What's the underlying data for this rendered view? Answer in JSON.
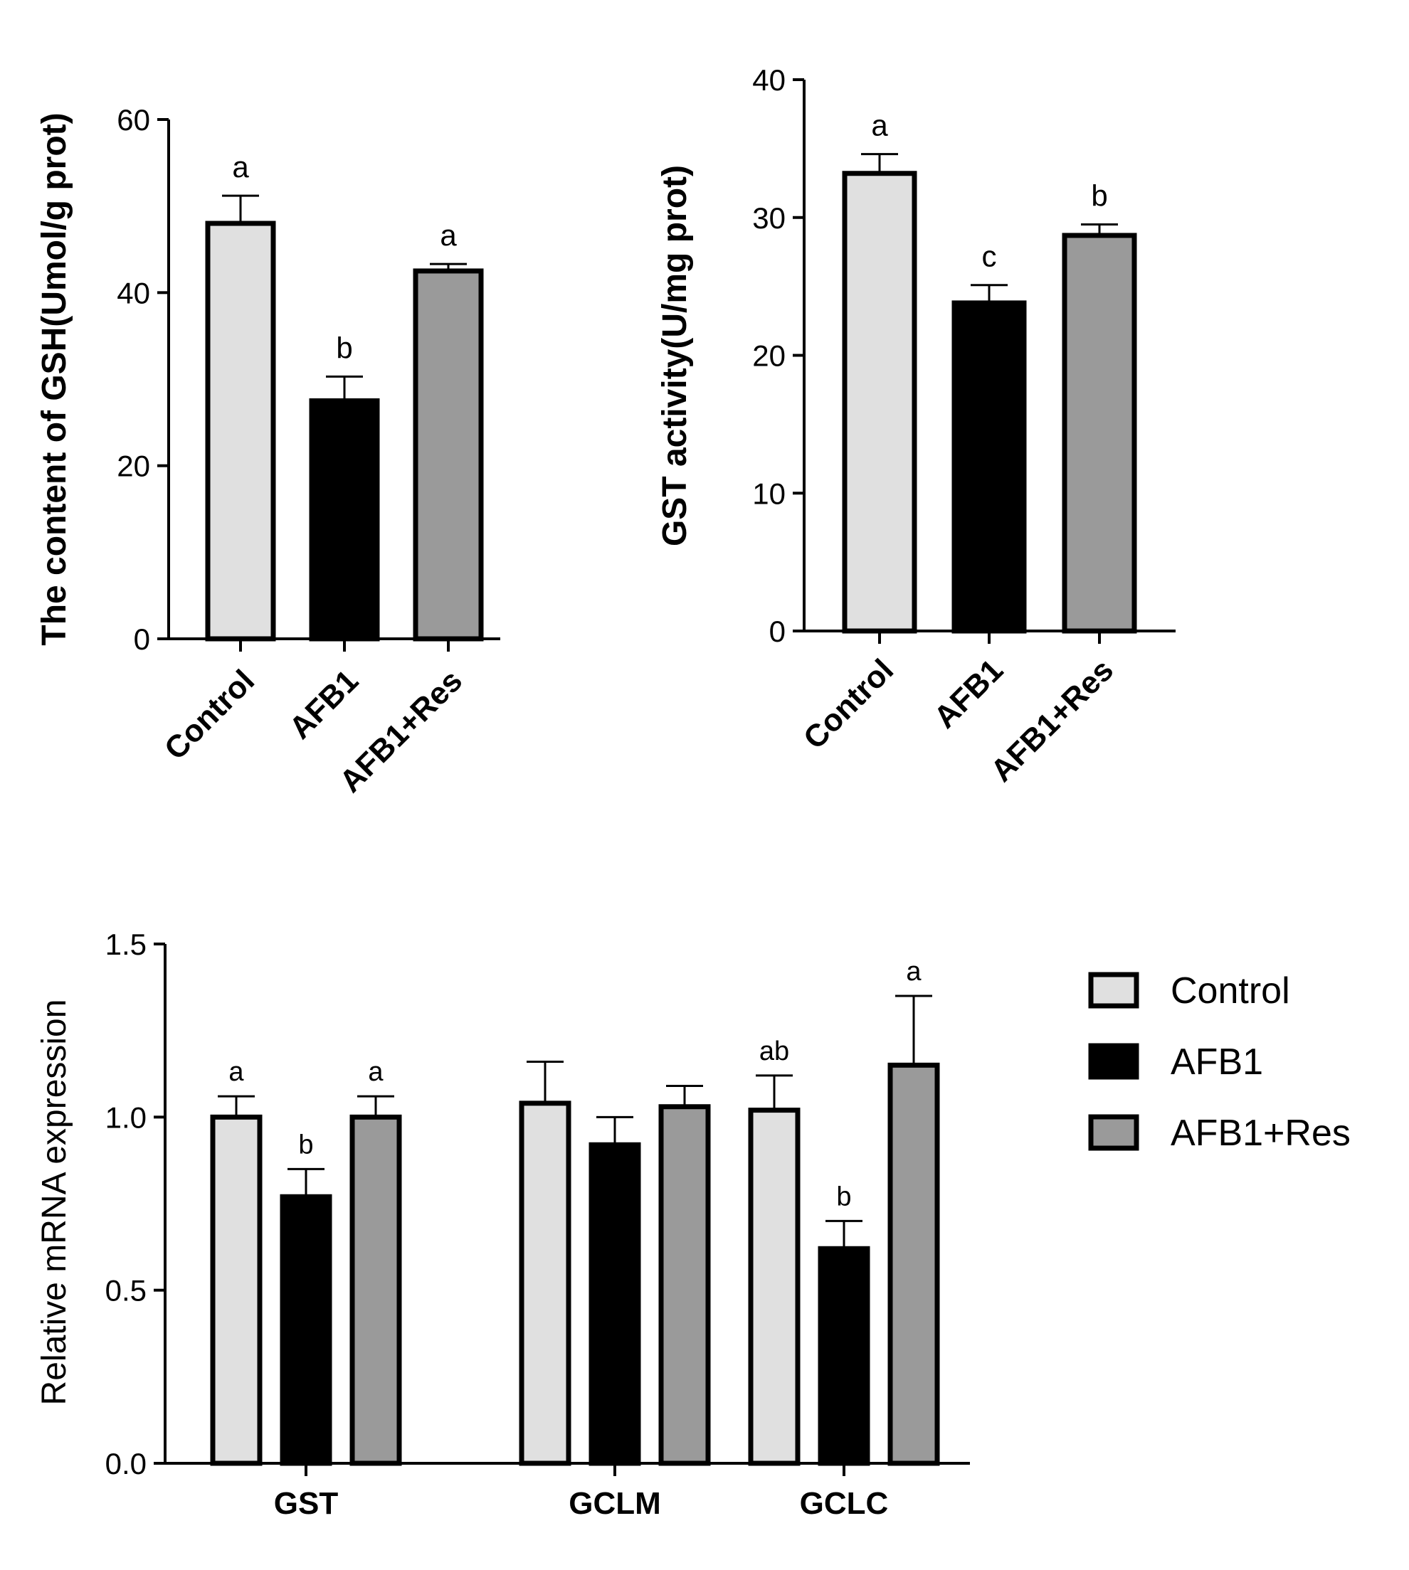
{
  "chart_data": [
    {
      "type": "bar",
      "title": "",
      "xlabel": "",
      "ylabel": "The content of GSH(Umol/g prot)",
      "ylim": [
        0,
        60
      ],
      "yticks": [
        0,
        20,
        40,
        60
      ],
      "categories": [
        "Control",
        "AFB1",
        "AFB1+Res"
      ],
      "values": [
        48,
        27.5,
        42.5
      ],
      "errors": [
        3.2,
        2.8,
        0.8
      ],
      "significance": [
        "a",
        "b",
        "a"
      ],
      "colors": [
        "#e0e0e0",
        "#000000",
        "#9a9a9a"
      ]
    },
    {
      "type": "bar",
      "title": "",
      "xlabel": "",
      "ylabel": "GST activity(U/mg prot)",
      "ylim": [
        0,
        40
      ],
      "yticks": [
        0,
        10,
        20,
        30,
        40
      ],
      "categories": [
        "Control",
        "AFB1",
        "AFB1+Res"
      ],
      "values": [
        33.2,
        23.8,
        28.7
      ],
      "errors": [
        1.4,
        1.3,
        0.8
      ],
      "significance": [
        "a",
        "c",
        "b"
      ],
      "colors": [
        "#e0e0e0",
        "#000000",
        "#9a9a9a"
      ]
    },
    {
      "type": "bar",
      "title": "",
      "xlabel": "",
      "ylabel": "Relative mRNA expression",
      "ylim": [
        0,
        1.5
      ],
      "yticks": [
        "0.0",
        "0.5",
        "1.0",
        "1.5"
      ],
      "categories": [
        "GST",
        "GCLM",
        "GCLC"
      ],
      "series": [
        {
          "name": "Control",
          "color": "#e0e0e0",
          "values": [
            1.0,
            1.04,
            1.02
          ],
          "errors": [
            0.06,
            0.12,
            0.1
          ],
          "significance": [
            "a",
            "",
            "ab"
          ]
        },
        {
          "name": "AFB1",
          "color": "#000000",
          "values": [
            0.77,
            0.92,
            0.62
          ],
          "errors": [
            0.08,
            0.08,
            0.08
          ],
          "significance": [
            "b",
            "",
            "b"
          ]
        },
        {
          "name": "AFB1+Res",
          "color": "#9a9a9a",
          "values": [
            1.0,
            1.03,
            1.15
          ],
          "errors": [
            0.06,
            0.06,
            0.2
          ],
          "significance": [
            "a",
            "",
            "a"
          ]
        }
      ],
      "legend": {
        "position": "right",
        "entries": [
          "Control",
          "AFB1",
          "AFB1+Res"
        ]
      }
    }
  ]
}
